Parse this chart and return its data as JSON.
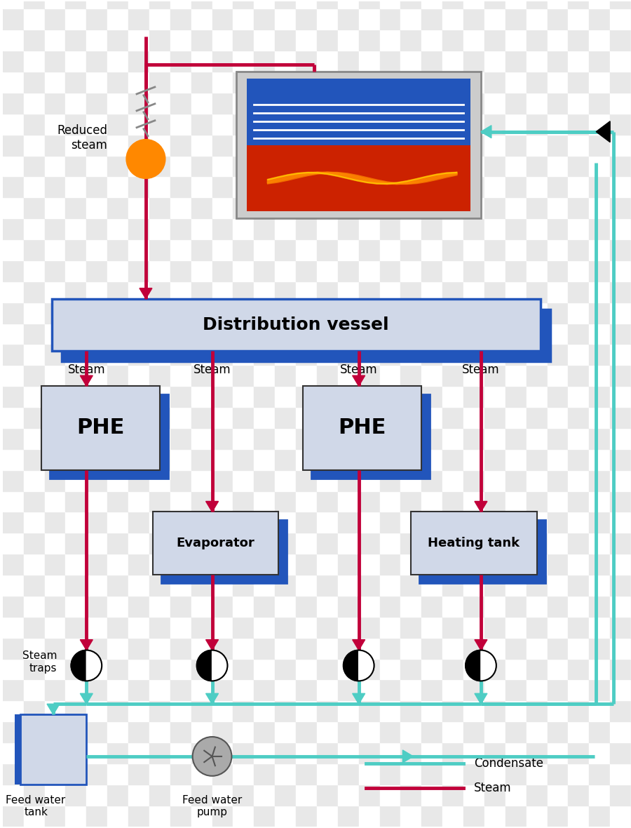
{
  "steam_color": "#C1003A",
  "condensate_color": "#4ECDC4",
  "box_fill": "#D0D8E8",
  "box_edge": "#333333",
  "blue_accent": "#2255BB",
  "bg_color": "#FFFFFF",
  "title": "Distribution vessel",
  "phe_label": "PHE",
  "evap_label": "Evaporator",
  "heat_label": "Heating tank",
  "fwt_label": "Feed water\ntank",
  "fwp_label": "Feed water\npump",
  "legend_condensate": "Condensate",
  "legend_steam": "Steam",
  "reduced_steam_label": "Reduced\nsteam",
  "steam_traps_label": "Steam\ntraps"
}
